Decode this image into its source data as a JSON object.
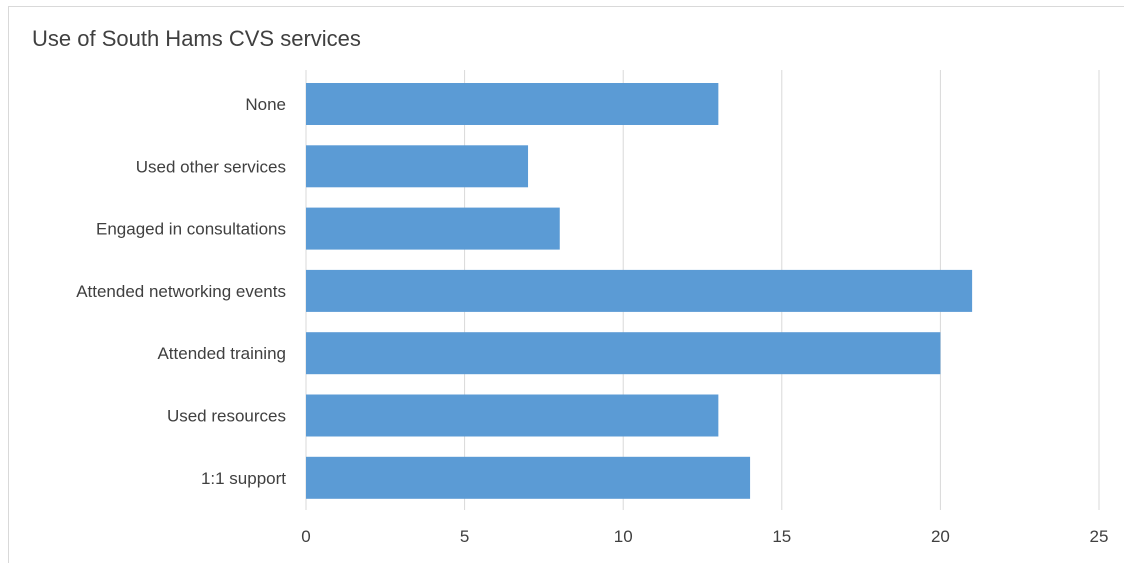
{
  "chart_data": {
    "type": "bar",
    "orientation": "horizontal",
    "title": "Use of South Hams CVS services",
    "xlabel": "",
    "ylabel": "",
    "categories": [
      "None ",
      "Used other services",
      "Engaged in consultations",
      "Attended networking events",
      "Attended training ",
      "Used resources",
      "1:1 support"
    ],
    "values": [
      13,
      7,
      8,
      21,
      20,
      13,
      14
    ],
    "xlim": [
      0,
      25
    ],
    "xticks": [
      "0",
      "5",
      "10",
      "15",
      "20",
      "25"
    ],
    "grid": "vertical",
    "legend": "none",
    "bar_color": "#5b9bd5",
    "grid_color": "#d9d9d9"
  }
}
